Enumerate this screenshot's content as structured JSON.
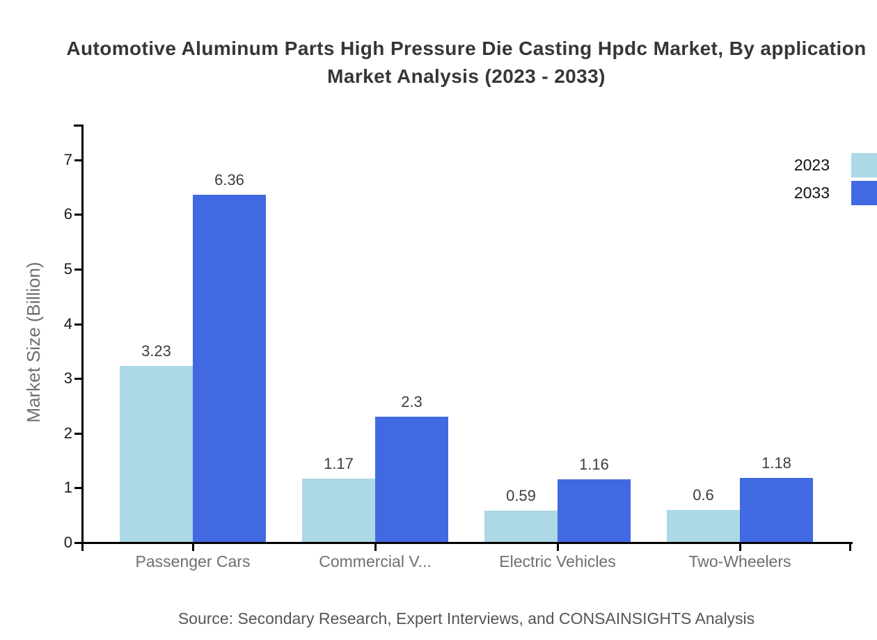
{
  "header": {
    "title_line1": "Automotive Aluminum Parts High Pressure Die Casting Hpdc Market, By application",
    "title_line2": "Market Analysis (2023 - 2033)"
  },
  "chart_data": {
    "type": "bar",
    "title": "Automotive Aluminum Parts High Pressure Die Casting Hpdc Market, By application Market Analysis (2023 - 2033)",
    "categories": [
      "Passenger Cars",
      "Commercial V...",
      "Electric Vehicles",
      "Two-Wheelers"
    ],
    "series": [
      {
        "name": "2023",
        "color": "#ADD8E6",
        "values": [
          3.23,
          1.17,
          0.59,
          0.6
        ]
      },
      {
        "name": "2033",
        "color": "#4169E1",
        "values": [
          6.36,
          2.3,
          1.16,
          1.18
        ]
      }
    ],
    "xlabel": "",
    "ylabel": "Market Size (Billion)",
    "yticks": [
      0,
      1,
      2,
      3,
      4,
      5,
      6,
      7
    ],
    "ylim": [
      0,
      7.63
    ],
    "grid": false,
    "legend_position": "top-right",
    "value_labels": true
  },
  "footer": {
    "source": "Source: Secondary Research, Expert Interviews, and CONSAINSIGHTS Analysis"
  },
  "colors": {
    "series_2023": "#ADD8E6",
    "series_2033": "#4169E1",
    "axis": "#000000",
    "title_text": "#363636",
    "tick_label": "#1a1a1a",
    "category_label": "#6f6f6f",
    "value_label": "#3d3d3d",
    "axis_title": "#6e6e6e",
    "source_text": "#555555",
    "background": "#ffffff"
  }
}
